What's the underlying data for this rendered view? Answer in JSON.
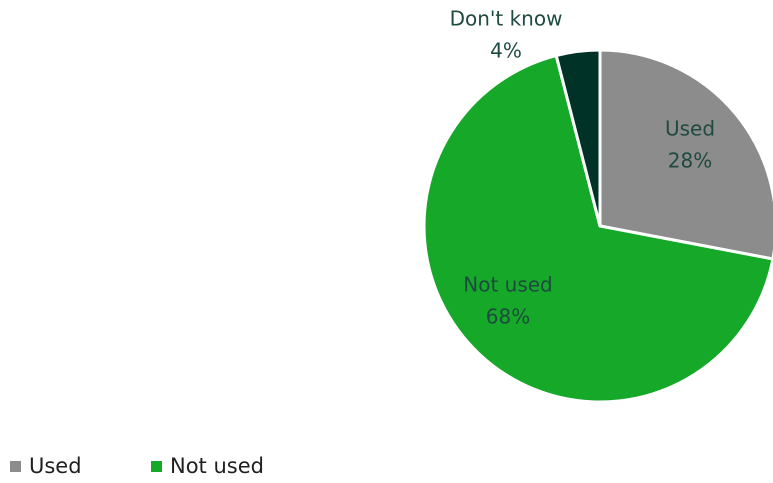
{
  "chart_data": {
    "type": "pie",
    "title": "",
    "slices": [
      {
        "name": "Used",
        "value": 28,
        "label": "28%",
        "color": "#8c8c8c",
        "text_color": "#1e4a3f"
      },
      {
        "name": "Not used",
        "value": 68,
        "label": "68%",
        "color": "#16a829",
        "text_color": "#1e4a3f"
      },
      {
        "name": "Don't know",
        "value": 4,
        "label": "4%",
        "color": "#003228",
        "text_color": "#1e4a3f"
      }
    ],
    "legend": {
      "position": "bottom-left",
      "entries": [
        {
          "name": "Used",
          "color": "#8c8c8c"
        },
        {
          "name": "Not used",
          "color": "#16a829"
        }
      ]
    },
    "start_angle_deg": 0,
    "direction": "clockwise"
  }
}
